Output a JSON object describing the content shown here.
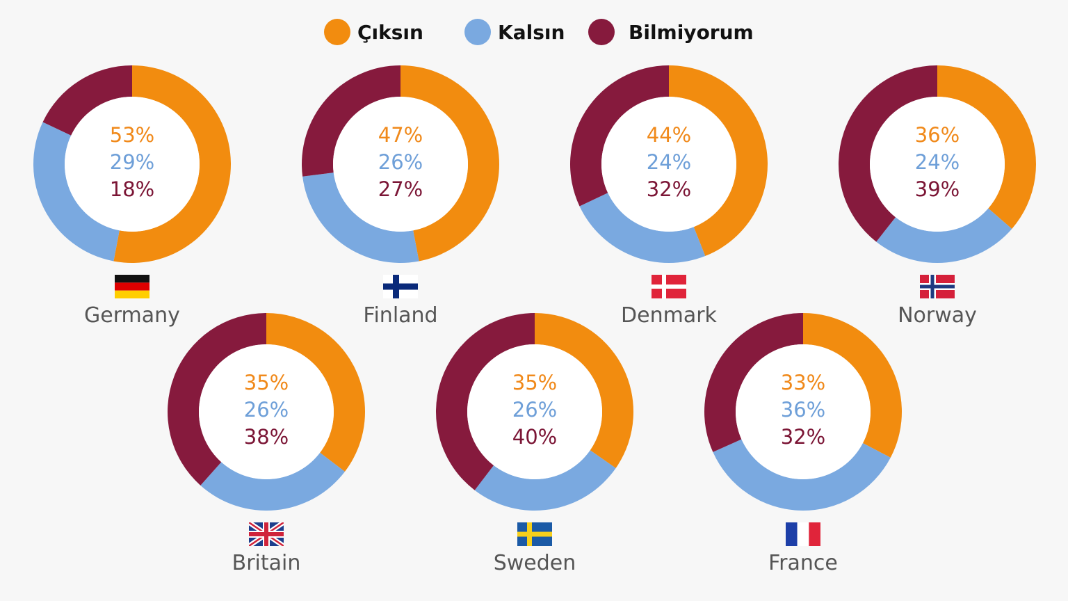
{
  "colors": {
    "leave": "#f28c0f",
    "stay": "#7aa9e0",
    "dontknow": "#861a3d",
    "label_leave": "#f0891a",
    "label_stay": "#6e9fd8",
    "label_dontknow": "#7b1535"
  },
  "legend": [
    {
      "key": "leave",
      "label": "Çıksın"
    },
    {
      "key": "stay",
      "label": "Kalsın"
    },
    {
      "key": "dontknow",
      "label": "Bilmiyorum"
    }
  ],
  "chart_data": {
    "type": "pie",
    "series_names": [
      "Çıksın",
      "Kalsın",
      "Bilmiyorum"
    ],
    "countries": [
      {
        "name": "Germany",
        "flag": "germany-flag-icon",
        "values": [
          53,
          29,
          18
        ],
        "labels": [
          "53%",
          "29%",
          "18%"
        ]
      },
      {
        "name": "Finland",
        "flag": "finland-flag-icon",
        "values": [
          47,
          26,
          27
        ],
        "labels": [
          "47%",
          "26%",
          "27%"
        ]
      },
      {
        "name": "Denmark",
        "flag": "denmark-flag-icon",
        "values": [
          44,
          24,
          32
        ],
        "labels": [
          "44%",
          "24%",
          "32%"
        ]
      },
      {
        "name": "Norway",
        "flag": "norway-flag-icon",
        "values": [
          36,
          24,
          39
        ],
        "labels": [
          "36%",
          "24%",
          "39%"
        ]
      },
      {
        "name": "Britain",
        "flag": "britain-flag-icon",
        "values": [
          35,
          26,
          38
        ],
        "labels": [
          "35%",
          "26%",
          "38%"
        ]
      },
      {
        "name": "Sweden",
        "flag": "sweden-flag-icon",
        "values": [
          35,
          26,
          40
        ],
        "labels": [
          "35%",
          "26%",
          "40%"
        ]
      },
      {
        "name": "France",
        "flag": "france-flag-icon",
        "values": [
          33,
          36,
          32
        ],
        "labels": [
          "33%",
          "36%",
          "32%"
        ]
      }
    ]
  }
}
